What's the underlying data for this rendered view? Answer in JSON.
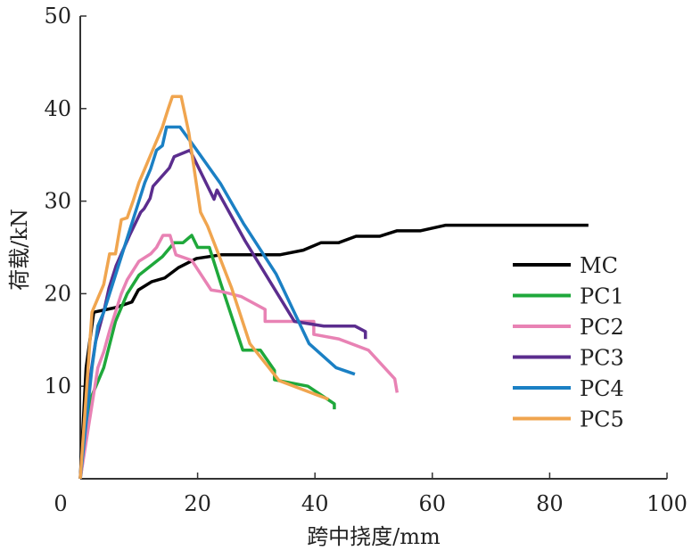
{
  "chart_data": {
    "type": "line",
    "title": "",
    "xlabel": "跨中挠度/mm",
    "ylabel": "荷载/kN",
    "xlim": [
      0,
      100
    ],
    "ylim": [
      0,
      50
    ],
    "xticks": [
      "0",
      "20",
      "40",
      "60",
      "80",
      "100"
    ],
    "yticks": [
      "10",
      "20",
      "30",
      "40",
      "50"
    ],
    "legend_position": "right",
    "series": [
      {
        "name": "MC",
        "color": "#000000",
        "points": [
          [
            0,
            0
          ],
          [
            1,
            12
          ],
          [
            2.3,
            18
          ],
          [
            6,
            18.5
          ],
          [
            8.8,
            19.1
          ],
          [
            9.9,
            20.4
          ],
          [
            12.2,
            21.3
          ],
          [
            14.4,
            21.7
          ],
          [
            16.7,
            22.8
          ],
          [
            19.8,
            23.8
          ],
          [
            24,
            24.2
          ],
          [
            34,
            24.2
          ],
          [
            38,
            24.7
          ],
          [
            41,
            25.5
          ],
          [
            44,
            25.5
          ],
          [
            47,
            26.2
          ],
          [
            51,
            26.2
          ],
          [
            54,
            26.8
          ],
          [
            58,
            26.8
          ],
          [
            62.3,
            27.4
          ],
          [
            86.6,
            27.4
          ]
        ]
      },
      {
        "name": "PC1",
        "color": "#1fa83b",
        "points": [
          [
            0,
            0
          ],
          [
            2,
            9
          ],
          [
            4,
            12
          ],
          [
            5,
            14.5
          ],
          [
            6,
            17
          ],
          [
            7,
            18.5
          ],
          [
            8,
            20
          ],
          [
            10,
            22
          ],
          [
            12,
            23
          ],
          [
            14,
            24
          ],
          [
            16,
            25.5
          ],
          [
            17.5,
            25.5
          ],
          [
            19,
            26.3
          ],
          [
            20,
            25
          ],
          [
            22,
            25
          ],
          [
            24,
            21
          ],
          [
            27.7,
            13.9
          ],
          [
            30.7,
            13.9
          ],
          [
            33.1,
            11.7
          ],
          [
            33.1,
            10.7
          ],
          [
            38.8,
            10
          ],
          [
            43.3,
            8.1
          ],
          [
            43.3,
            7.5
          ]
        ]
      },
      {
        "name": "PC2",
        "color": "#e882b4",
        "points": [
          [
            0,
            0
          ],
          [
            2,
            8
          ],
          [
            3,
            12
          ],
          [
            4,
            13.7
          ],
          [
            5,
            16
          ],
          [
            6,
            18
          ],
          [
            7,
            20
          ],
          [
            8,
            21.5
          ],
          [
            9,
            22.5
          ],
          [
            10,
            23.5
          ],
          [
            12,
            24.3
          ],
          [
            13,
            25
          ],
          [
            14.1,
            26.3
          ],
          [
            15.3,
            26.3
          ],
          [
            16.3,
            24.2
          ],
          [
            19,
            23.6
          ],
          [
            22.3,
            20.4
          ],
          [
            24.3,
            20.2
          ],
          [
            27.4,
            19.7
          ],
          [
            31.5,
            18.3
          ],
          [
            31.5,
            17
          ],
          [
            39.8,
            17
          ],
          [
            39.8,
            15.6
          ],
          [
            44.1,
            15.1
          ],
          [
            49.1,
            13.9
          ],
          [
            53.6,
            10.8
          ],
          [
            54,
            9.3
          ]
        ]
      },
      {
        "name": "PC3",
        "color": "#5b2d8e",
        "points": [
          [
            0,
            0
          ],
          [
            1,
            8
          ],
          [
            2.6,
            14.8
          ],
          [
            4.1,
            18.3
          ],
          [
            4.9,
            20.6
          ],
          [
            6.1,
            23
          ],
          [
            8.4,
            26.3
          ],
          [
            10.3,
            28.8
          ],
          [
            10.9,
            29.2
          ],
          [
            11.9,
            30.3
          ],
          [
            12.4,
            31.6
          ],
          [
            15.2,
            33.6
          ],
          [
            16,
            34.8
          ],
          [
            18.7,
            35.5
          ],
          [
            22.8,
            30.2
          ],
          [
            23.3,
            31.2
          ],
          [
            28.1,
            25.7
          ],
          [
            36.5,
            17
          ],
          [
            41.5,
            16.5
          ],
          [
            46.8,
            16.5
          ],
          [
            48.6,
            15.9
          ],
          [
            48.6,
            15.1
          ]
        ]
      },
      {
        "name": "PC4",
        "color": "#1b80c4",
        "points": [
          [
            0,
            0
          ],
          [
            2,
            12
          ],
          [
            3,
            16.5
          ],
          [
            4,
            18
          ],
          [
            5,
            20
          ],
          [
            6,
            22
          ],
          [
            7,
            24
          ],
          [
            8,
            26
          ],
          [
            9,
            28
          ],
          [
            10,
            30
          ],
          [
            11,
            32
          ],
          [
            12,
            33.5
          ],
          [
            13,
            35.5
          ],
          [
            14,
            36
          ],
          [
            14.7,
            38
          ],
          [
            17,
            38
          ],
          [
            19.3,
            36
          ],
          [
            23.9,
            31.9
          ],
          [
            27.8,
            27.6
          ],
          [
            33.4,
            22.1
          ],
          [
            39,
            14.6
          ],
          [
            43.6,
            12
          ],
          [
            46.8,
            11.3
          ]
        ]
      },
      {
        "name": "PC5",
        "color": "#f0a54f",
        "points": [
          [
            0,
            0
          ],
          [
            2,
            18
          ],
          [
            3,
            19.5
          ],
          [
            4,
            21
          ],
          [
            5,
            24.3
          ],
          [
            6,
            24.3
          ],
          [
            7,
            28
          ],
          [
            8,
            28.2
          ],
          [
            9,
            30
          ],
          [
            10,
            32
          ],
          [
            11,
            33.5
          ],
          [
            12,
            35
          ],
          [
            13,
            36.5
          ],
          [
            14,
            38
          ],
          [
            15,
            40
          ],
          [
            15.7,
            41.3
          ],
          [
            17.2,
            41.3
          ],
          [
            18.5,
            37.4
          ],
          [
            20.5,
            28.8
          ],
          [
            21.7,
            27.3
          ],
          [
            25.8,
            20.6
          ],
          [
            28.9,
            14.6
          ],
          [
            33.9,
            10.6
          ],
          [
            40.6,
            9
          ],
          [
            42.3,
            8.6
          ]
        ]
      }
    ]
  }
}
